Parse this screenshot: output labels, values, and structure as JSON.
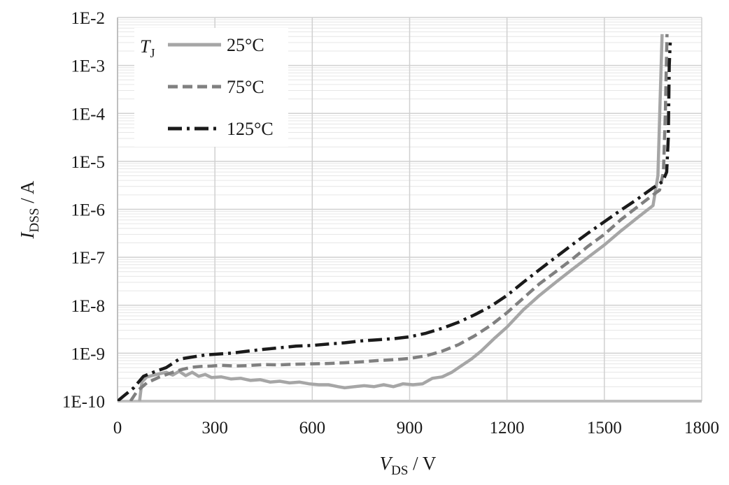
{
  "chart_data": {
    "type": "line",
    "xlabel": {
      "main": "V",
      "sub": "DS",
      "unit": " / V"
    },
    "ylabel": {
      "main": "I",
      "sub": "DSS",
      "unit": " / A"
    },
    "xlim": [
      0,
      1800
    ],
    "ylim": [
      1e-10,
      0.01
    ],
    "yscale": "log",
    "xticks": [
      0,
      300,
      600,
      900,
      1200,
      1500,
      1800
    ],
    "xtick_labels": [
      "0",
      "300",
      "600",
      "900",
      "1200",
      "1500",
      "1800"
    ],
    "yticks": [
      1e-10,
      1e-09,
      1e-08,
      1e-07,
      1e-06,
      1e-05,
      0.0001,
      0.001,
      0.01
    ],
    "ytick_labels": [
      "1E-10",
      "1E-9",
      "1E-8",
      "1E-7",
      "1E-6",
      "1E-5",
      "1E-4",
      "1E-3",
      "1E-2"
    ],
    "grid": true,
    "legend": {
      "title_main": "T",
      "title_sub": "J",
      "placement": "top-left"
    },
    "series": [
      {
        "name": "25°C",
        "color": "#a6a6a6",
        "dash": "solid",
        "points": [
          [
            68,
            1e-10
          ],
          [
            75,
            2.5e-10
          ],
          [
            90,
            3.2e-10
          ],
          [
            120,
            3.6e-10
          ],
          [
            150,
            4e-10
          ],
          [
            170,
            3.5e-10
          ],
          [
            190,
            4.2e-10
          ],
          [
            210,
            3.4e-10
          ],
          [
            230,
            4e-10
          ],
          [
            250,
            3.3e-10
          ],
          [
            270,
            3.6e-10
          ],
          [
            290,
            3.1e-10
          ],
          [
            320,
            3.2e-10
          ],
          [
            350,
            2.9e-10
          ],
          [
            380,
            3e-10
          ],
          [
            410,
            2.7e-10
          ],
          [
            440,
            2.8e-10
          ],
          [
            470,
            2.5e-10
          ],
          [
            500,
            2.6e-10
          ],
          [
            530,
            2.4e-10
          ],
          [
            560,
            2.5e-10
          ],
          [
            590,
            2.3e-10
          ],
          [
            620,
            2.2e-10
          ],
          [
            650,
            2.2e-10
          ],
          [
            680,
            2e-10
          ],
          [
            700,
            1.9e-10
          ],
          [
            730,
            2e-10
          ],
          [
            760,
            2.1e-10
          ],
          [
            790,
            2e-10
          ],
          [
            820,
            2.2e-10
          ],
          [
            850,
            2e-10
          ],
          [
            880,
            2.3e-10
          ],
          [
            910,
            2.2e-10
          ],
          [
            940,
            2.3e-10
          ],
          [
            970,
            3e-10
          ],
          [
            1000,
            3.2e-10
          ],
          [
            1030,
            4e-10
          ],
          [
            1060,
            5.5e-10
          ],
          [
            1090,
            7.5e-10
          ],
          [
            1120,
            1.1e-09
          ],
          [
            1160,
            2e-09
          ],
          [
            1200,
            3.5e-09
          ],
          [
            1250,
            8e-09
          ],
          [
            1300,
            1.6e-08
          ],
          [
            1350,
            3e-08
          ],
          [
            1400,
            5.5e-08
          ],
          [
            1450,
            1e-07
          ],
          [
            1500,
            1.8e-07
          ],
          [
            1550,
            3.5e-07
          ],
          [
            1600,
            6.5e-07
          ],
          [
            1650,
            1.2e-06
          ],
          [
            1665,
            5e-06
          ],
          [
            1672,
            0.0002
          ],
          [
            1678,
            0.0045
          ]
        ]
      },
      {
        "name": "75°C",
        "color": "#808080",
        "dash": "14 7",
        "points": [
          [
            40,
            1e-10
          ],
          [
            60,
            1.6e-10
          ],
          [
            90,
            2.4e-10
          ],
          [
            130,
            3.2e-10
          ],
          [
            170,
            4e-10
          ],
          [
            200,
            4.6e-10
          ],
          [
            230,
            5.1e-10
          ],
          [
            260,
            5.3e-10
          ],
          [
            290,
            5.4e-10
          ],
          [
            320,
            5.6e-10
          ],
          [
            360,
            5.4e-10
          ],
          [
            400,
            5.5e-10
          ],
          [
            450,
            5.8e-10
          ],
          [
            500,
            5.7e-10
          ],
          [
            550,
            5.9e-10
          ],
          [
            600,
            6e-10
          ],
          [
            650,
            6.1e-10
          ],
          [
            700,
            6.3e-10
          ],
          [
            750,
            6.6e-10
          ],
          [
            800,
            7e-10
          ],
          [
            850,
            7.3e-10
          ],
          [
            900,
            7.8e-10
          ],
          [
            950,
            8.8e-10
          ],
          [
            1000,
            1.1e-09
          ],
          [
            1050,
            1.5e-09
          ],
          [
            1100,
            2.3e-09
          ],
          [
            1150,
            3.8e-09
          ],
          [
            1200,
            7e-09
          ],
          [
            1250,
            1.4e-08
          ],
          [
            1300,
            2.8e-08
          ],
          [
            1350,
            5e-08
          ],
          [
            1400,
            9e-08
          ],
          [
            1450,
            1.7e-07
          ],
          [
            1500,
            3e-07
          ],
          [
            1550,
            6e-07
          ],
          [
            1600,
            1.1e-06
          ],
          [
            1650,
            2e-06
          ],
          [
            1670,
            2.5e-06
          ],
          [
            1682,
            6e-06
          ],
          [
            1688,
            0.0001
          ],
          [
            1693,
            0.0045
          ]
        ]
      },
      {
        "name": "125°C",
        "color": "#1a1a1a",
        "dash": "20 7 4 7",
        "points": [
          [
            0,
            1e-10
          ],
          [
            20,
            1.3e-10
          ],
          [
            50,
            1.9e-10
          ],
          [
            80,
            3.3e-10
          ],
          [
            110,
            4e-10
          ],
          [
            150,
            5e-10
          ],
          [
            190,
            7.5e-10
          ],
          [
            230,
            8.3e-10
          ],
          [
            270,
            9.2e-10
          ],
          [
            310,
            9.6e-10
          ],
          [
            350,
            1e-09
          ],
          [
            400,
            1.1e-09
          ],
          [
            450,
            1.2e-09
          ],
          [
            500,
            1.3e-09
          ],
          [
            550,
            1.4e-09
          ],
          [
            600,
            1.45e-09
          ],
          [
            650,
            1.55e-09
          ],
          [
            700,
            1.65e-09
          ],
          [
            750,
            1.8e-09
          ],
          [
            800,
            1.9e-09
          ],
          [
            850,
            2e-09
          ],
          [
            900,
            2.2e-09
          ],
          [
            950,
            2.6e-09
          ],
          [
            1000,
            3.3e-09
          ],
          [
            1050,
            4.4e-09
          ],
          [
            1100,
            6.3e-09
          ],
          [
            1150,
            9.5e-09
          ],
          [
            1200,
            1.6e-08
          ],
          [
            1250,
            3e-08
          ],
          [
            1300,
            5.5e-08
          ],
          [
            1350,
            1e-07
          ],
          [
            1400,
            1.8e-07
          ],
          [
            1450,
            3.2e-07
          ],
          [
            1500,
            5.5e-07
          ],
          [
            1550,
            9.5e-07
          ],
          [
            1600,
            1.6e-06
          ],
          [
            1650,
            2.8e-06
          ],
          [
            1680,
            3.8e-06
          ],
          [
            1692,
            6e-06
          ],
          [
            1697,
            3e-05
          ],
          [
            1700,
            0.001
          ],
          [
            1703,
            0.003
          ]
        ]
      }
    ]
  }
}
